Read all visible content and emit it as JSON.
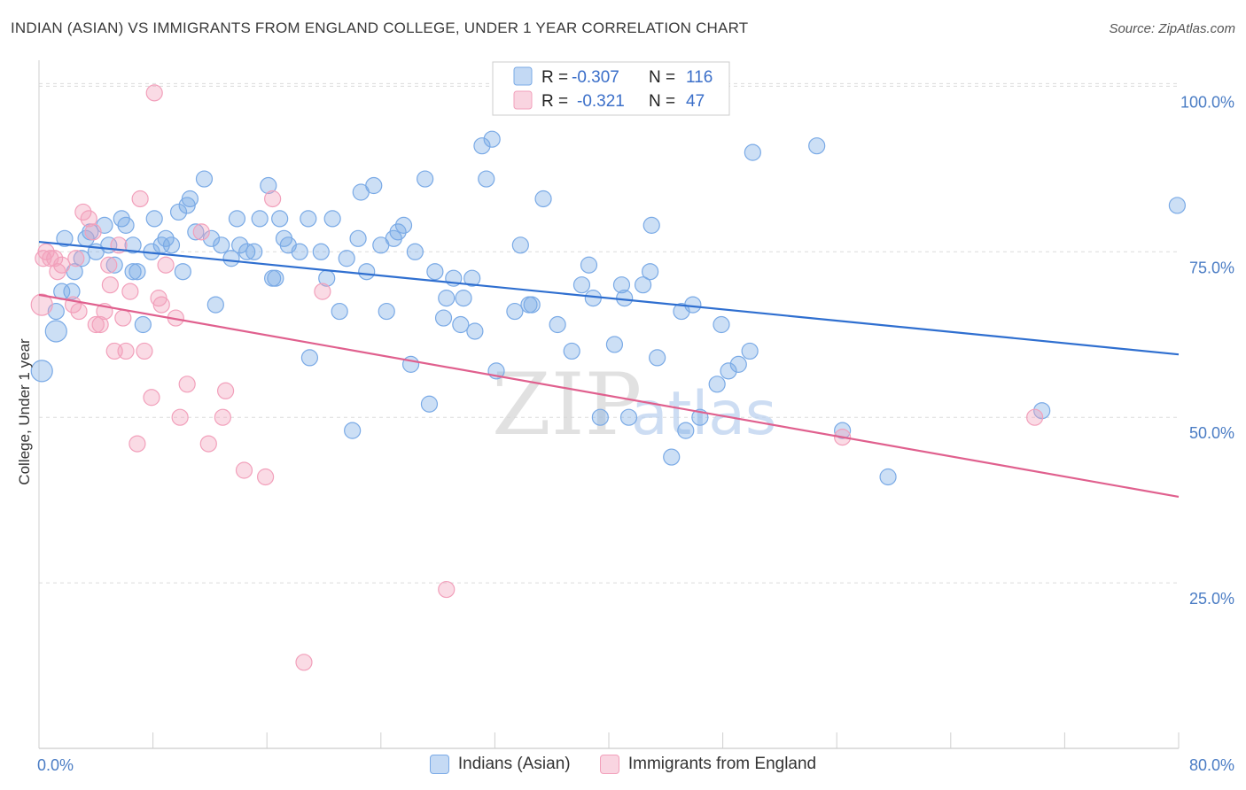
{
  "header": {
    "title": "INDIAN (ASIAN) VS IMMIGRANTS FROM ENGLAND COLLEGE, UNDER 1 YEAR CORRELATION CHART",
    "source": "Source: ZipAtlas.com"
  },
  "watermark": {
    "zip": "ZIP",
    "atlas": "atlas"
  },
  "legend": {
    "rows": [
      {
        "r_label": "R =",
        "r_value": "-0.307",
        "n_label": "N =",
        "n_value": "116",
        "color": "#7aaae6"
      },
      {
        "r_label": "R =",
        "r_value": "-0.321",
        "n_label": "N =",
        "n_value": "47",
        "color": "#f2a0bb"
      }
    ]
  },
  "chart_data": {
    "type": "scatter",
    "title": "INDIAN (ASIAN) VS IMMIGRANTS FROM ENGLAND COLLEGE, UNDER 1 YEAR CORRELATION CHART",
    "xlabel": "",
    "ylabel": "College, Under 1 year",
    "xlim": [
      0,
      80
    ],
    "ylim": [
      0,
      105
    ],
    "x_tick_labels": [
      "0.0%",
      "80.0%"
    ],
    "y_ticks": [
      25,
      50,
      75,
      100
    ],
    "y_tick_labels": [
      "25.0%",
      "50.0%",
      "75.0%",
      "100.0%"
    ],
    "grid": true,
    "legend_position": "top-center",
    "series": [
      {
        "name": "Indians (Asian)",
        "color": "#7aaae6",
        "line_color": "#2f6fd0",
        "trend": {
          "x": [
            0,
            80
          ],
          "y": [
            76.5,
            59.5
          ]
        },
        "points": [
          [
            0.2,
            57
          ],
          [
            1.2,
            63
          ],
          [
            1.2,
            66
          ],
          [
            1.6,
            69
          ],
          [
            2.3,
            69
          ],
          [
            2.5,
            72
          ],
          [
            3.0,
            74
          ],
          [
            3.3,
            77
          ],
          [
            3.6,
            78
          ],
          [
            4.0,
            75
          ],
          [
            4.6,
            79
          ],
          [
            4.9,
            76
          ],
          [
            5.3,
            73
          ],
          [
            5.8,
            80
          ],
          [
            6.1,
            79
          ],
          [
            6.6,
            72
          ],
          [
            6.9,
            72
          ],
          [
            7.3,
            64
          ],
          [
            7.9,
            75
          ],
          [
            8.1,
            80
          ],
          [
            8.6,
            76
          ],
          [
            8.9,
            77
          ],
          [
            9.3,
            76
          ],
          [
            9.8,
            81
          ],
          [
            10.1,
            72
          ],
          [
            10.4,
            82
          ],
          [
            10.6,
            83
          ],
          [
            11.0,
            78
          ],
          [
            11.6,
            86
          ],
          [
            12.1,
            77
          ],
          [
            12.4,
            67
          ],
          [
            12.8,
            76
          ],
          [
            13.5,
            74
          ],
          [
            13.9,
            80
          ],
          [
            14.1,
            76
          ],
          [
            14.6,
            75
          ],
          [
            15.1,
            75
          ],
          [
            15.5,
            80
          ],
          [
            16.1,
            85
          ],
          [
            16.4,
            71
          ],
          [
            16.6,
            71
          ],
          [
            16.9,
            80
          ],
          [
            17.2,
            77
          ],
          [
            17.5,
            76
          ],
          [
            18.3,
            75
          ],
          [
            18.9,
            80
          ],
          [
            19.0,
            59
          ],
          [
            19.8,
            75
          ],
          [
            20.2,
            71
          ],
          [
            20.6,
            80
          ],
          [
            21.1,
            66
          ],
          [
            21.6,
            74
          ],
          [
            22.0,
            48
          ],
          [
            22.4,
            77
          ],
          [
            22.6,
            84
          ],
          [
            23.0,
            72
          ],
          [
            23.5,
            85
          ],
          [
            24.0,
            76
          ],
          [
            24.4,
            66
          ],
          [
            24.9,
            77
          ],
          [
            25.2,
            78
          ],
          [
            25.6,
            79
          ],
          [
            26.1,
            58
          ],
          [
            26.4,
            75
          ],
          [
            27.1,
            86
          ],
          [
            27.4,
            52
          ],
          [
            27.8,
            72
          ],
          [
            28.4,
            65
          ],
          [
            28.6,
            68
          ],
          [
            29.1,
            71
          ],
          [
            29.6,
            64
          ],
          [
            29.8,
            68
          ],
          [
            30.4,
            71
          ],
          [
            30.6,
            63
          ],
          [
            31.1,
            91
          ],
          [
            31.4,
            86
          ],
          [
            31.8,
            92
          ],
          [
            32.1,
            57
          ],
          [
            33.0,
            100
          ],
          [
            33.4,
            66
          ],
          [
            33.8,
            76
          ],
          [
            34.4,
            67
          ],
          [
            34.6,
            67
          ],
          [
            35.4,
            83
          ],
          [
            36.4,
            64
          ],
          [
            37.4,
            60
          ],
          [
            38.1,
            70
          ],
          [
            38.6,
            73
          ],
          [
            38.9,
            68
          ],
          [
            39.4,
            50
          ],
          [
            40.4,
            61
          ],
          [
            40.9,
            70
          ],
          [
            41.1,
            68
          ],
          [
            41.4,
            50
          ],
          [
            42.4,
            70
          ],
          [
            42.9,
            72
          ],
          [
            43.0,
            79
          ],
          [
            43.4,
            59
          ],
          [
            44.4,
            44
          ],
          [
            45.1,
            66
          ],
          [
            45.4,
            48
          ],
          [
            45.9,
            67
          ],
          [
            46.4,
            50
          ],
          [
            47.6,
            55
          ],
          [
            47.9,
            64
          ],
          [
            48.4,
            57
          ],
          [
            49.1,
            58
          ],
          [
            49.9,
            60
          ],
          [
            50.1,
            90
          ],
          [
            54.6,
            91
          ],
          [
            56.4,
            48
          ],
          [
            59.6,
            41
          ],
          [
            70.4,
            51
          ],
          [
            79.9,
            82
          ],
          [
            1.8,
            77
          ],
          [
            6.6,
            76
          ]
        ]
      },
      {
        "name": "Immigrants from England",
        "color": "#f2a0bb",
        "line_color": "#e0608e",
        "trend": {
          "x": [
            0,
            80
          ],
          "y": [
            68.5,
            38.0
          ]
        },
        "points": [
          [
            0.2,
            67
          ],
          [
            0.3,
            74
          ],
          [
            0.5,
            75
          ],
          [
            0.8,
            74
          ],
          [
            1.1,
            74
          ],
          [
            1.3,
            72
          ],
          [
            1.6,
            73
          ],
          [
            2.4,
            67
          ],
          [
            2.6,
            74
          ],
          [
            2.8,
            66
          ],
          [
            3.1,
            81
          ],
          [
            3.5,
            80
          ],
          [
            3.8,
            78
          ],
          [
            4.0,
            64
          ],
          [
            4.3,
            64
          ],
          [
            4.6,
            66
          ],
          [
            4.9,
            73
          ],
          [
            5.0,
            70
          ],
          [
            5.3,
            60
          ],
          [
            5.6,
            76
          ],
          [
            5.9,
            65
          ],
          [
            6.1,
            60
          ],
          [
            6.4,
            69
          ],
          [
            6.9,
            46
          ],
          [
            7.1,
            83
          ],
          [
            7.4,
            60
          ],
          [
            7.9,
            53
          ],
          [
            8.1,
            99
          ],
          [
            8.4,
            68
          ],
          [
            8.6,
            67
          ],
          [
            8.9,
            73
          ],
          [
            9.6,
            65
          ],
          [
            9.9,
            50
          ],
          [
            10.4,
            55
          ],
          [
            11.4,
            78
          ],
          [
            11.9,
            46
          ],
          [
            12.9,
            50
          ],
          [
            13.1,
            54
          ],
          [
            14.4,
            42
          ],
          [
            15.9,
            41
          ],
          [
            16.4,
            83
          ],
          [
            18.6,
            13
          ],
          [
            19.9,
            69
          ],
          [
            28.6,
            24
          ],
          [
            33.1,
            100
          ],
          [
            56.4,
            47
          ],
          [
            69.9,
            50
          ]
        ]
      }
    ]
  },
  "bottom_legend": {
    "items": [
      {
        "label": "Indians (Asian)",
        "color": "#7aaae6"
      },
      {
        "label": "Immigrants from England",
        "color": "#f2a0bb"
      }
    ]
  }
}
